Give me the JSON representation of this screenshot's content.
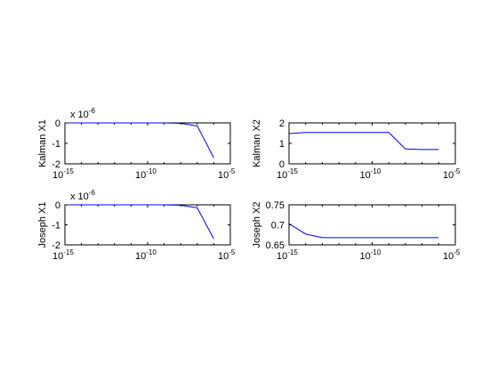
{
  "figure": {
    "background": "#ffffff",
    "line_color": "#0000ff"
  },
  "chart_data": [
    {
      "type": "line",
      "ylabel": "Kalman X1",
      "xscale": "log",
      "xlim": [
        1e-15,
        1e-05
      ],
      "ylim": [
        -2e-06,
        0
      ],
      "x_ticklabels": [
        {
          "base": "10",
          "exp": "-15"
        },
        {
          "base": "10",
          "exp": "-10"
        },
        {
          "base": "10",
          "exp": "-5"
        }
      ],
      "yticks": [
        0,
        -1e-06,
        -2e-06
      ],
      "y_ticklabels": [
        "0",
        "-1",
        "-2"
      ],
      "y_multiplier": {
        "text": "x 10",
        "exp": "-6"
      },
      "x": [
        1e-15,
        1e-14,
        1e-13,
        1e-12,
        1e-11,
        1e-10,
        1e-09,
        1e-08,
        1e-07,
        1e-06
      ],
      "y": [
        0,
        0,
        0,
        0,
        0,
        0,
        0,
        -2e-08,
        -1.5e-07,
        -1.7e-06
      ],
      "grid": false
    },
    {
      "type": "line",
      "ylabel": "Kalman X2",
      "xscale": "log",
      "xlim": [
        1e-15,
        1e-05
      ],
      "ylim": [
        0,
        2
      ],
      "x_ticklabels": [
        {
          "base": "10",
          "exp": "-15"
        },
        {
          "base": "10",
          "exp": "-10"
        },
        {
          "base": "10",
          "exp": "-5"
        }
      ],
      "yticks": [
        2,
        1,
        0
      ],
      "y_ticklabels": [
        "2",
        "1",
        "0"
      ],
      "x": [
        1e-15,
        1e-14,
        1e-13,
        1e-12,
        1e-11,
        1e-10,
        1e-09,
        1e-08,
        1e-07,
        1e-06
      ],
      "y": [
        1.48,
        1.53,
        1.53,
        1.53,
        1.53,
        1.53,
        1.53,
        0.73,
        0.7,
        0.7
      ],
      "grid": false
    },
    {
      "type": "line",
      "ylabel": "Joseph X1",
      "xscale": "log",
      "xlim": [
        1e-15,
        1e-05
      ],
      "ylim": [
        -2e-06,
        0
      ],
      "x_ticklabels": [
        {
          "base": "10",
          "exp": "-15"
        },
        {
          "base": "10",
          "exp": "-10"
        },
        {
          "base": "10",
          "exp": "-5"
        }
      ],
      "yticks": [
        0,
        -1e-06,
        -2e-06
      ],
      "y_ticklabels": [
        "0",
        "-1",
        "-2"
      ],
      "y_multiplier": {
        "text": "x 10",
        "exp": "-6"
      },
      "x": [
        1e-15,
        1e-14,
        1e-13,
        1e-12,
        1e-11,
        1e-10,
        1e-09,
        1e-08,
        1e-07,
        1e-06
      ],
      "y": [
        0,
        0,
        0,
        0,
        0,
        0,
        0,
        -2e-08,
        -1.5e-07,
        -1.7e-06
      ],
      "grid": false
    },
    {
      "type": "line",
      "ylabel": "Joseph X2",
      "xscale": "log",
      "xlim": [
        1e-15,
        1e-05
      ],
      "ylim": [
        0.65,
        0.75
      ],
      "x_ticklabels": [
        {
          "base": "10",
          "exp": "-15"
        },
        {
          "base": "10",
          "exp": "-10"
        },
        {
          "base": "10",
          "exp": "-5"
        }
      ],
      "yticks": [
        0.75,
        0.7,
        0.65
      ],
      "y_ticklabels": [
        "0.75",
        "0.7",
        "0.65"
      ],
      "x": [
        1e-15,
        1e-14,
        1e-13,
        1e-12,
        1e-11,
        1e-10,
        1e-09,
        1e-08,
        1e-07,
        1e-06
      ],
      "y": [
        0.703,
        0.677,
        0.668,
        0.668,
        0.668,
        0.668,
        0.668,
        0.668,
        0.668,
        0.668
      ],
      "grid": false
    }
  ]
}
